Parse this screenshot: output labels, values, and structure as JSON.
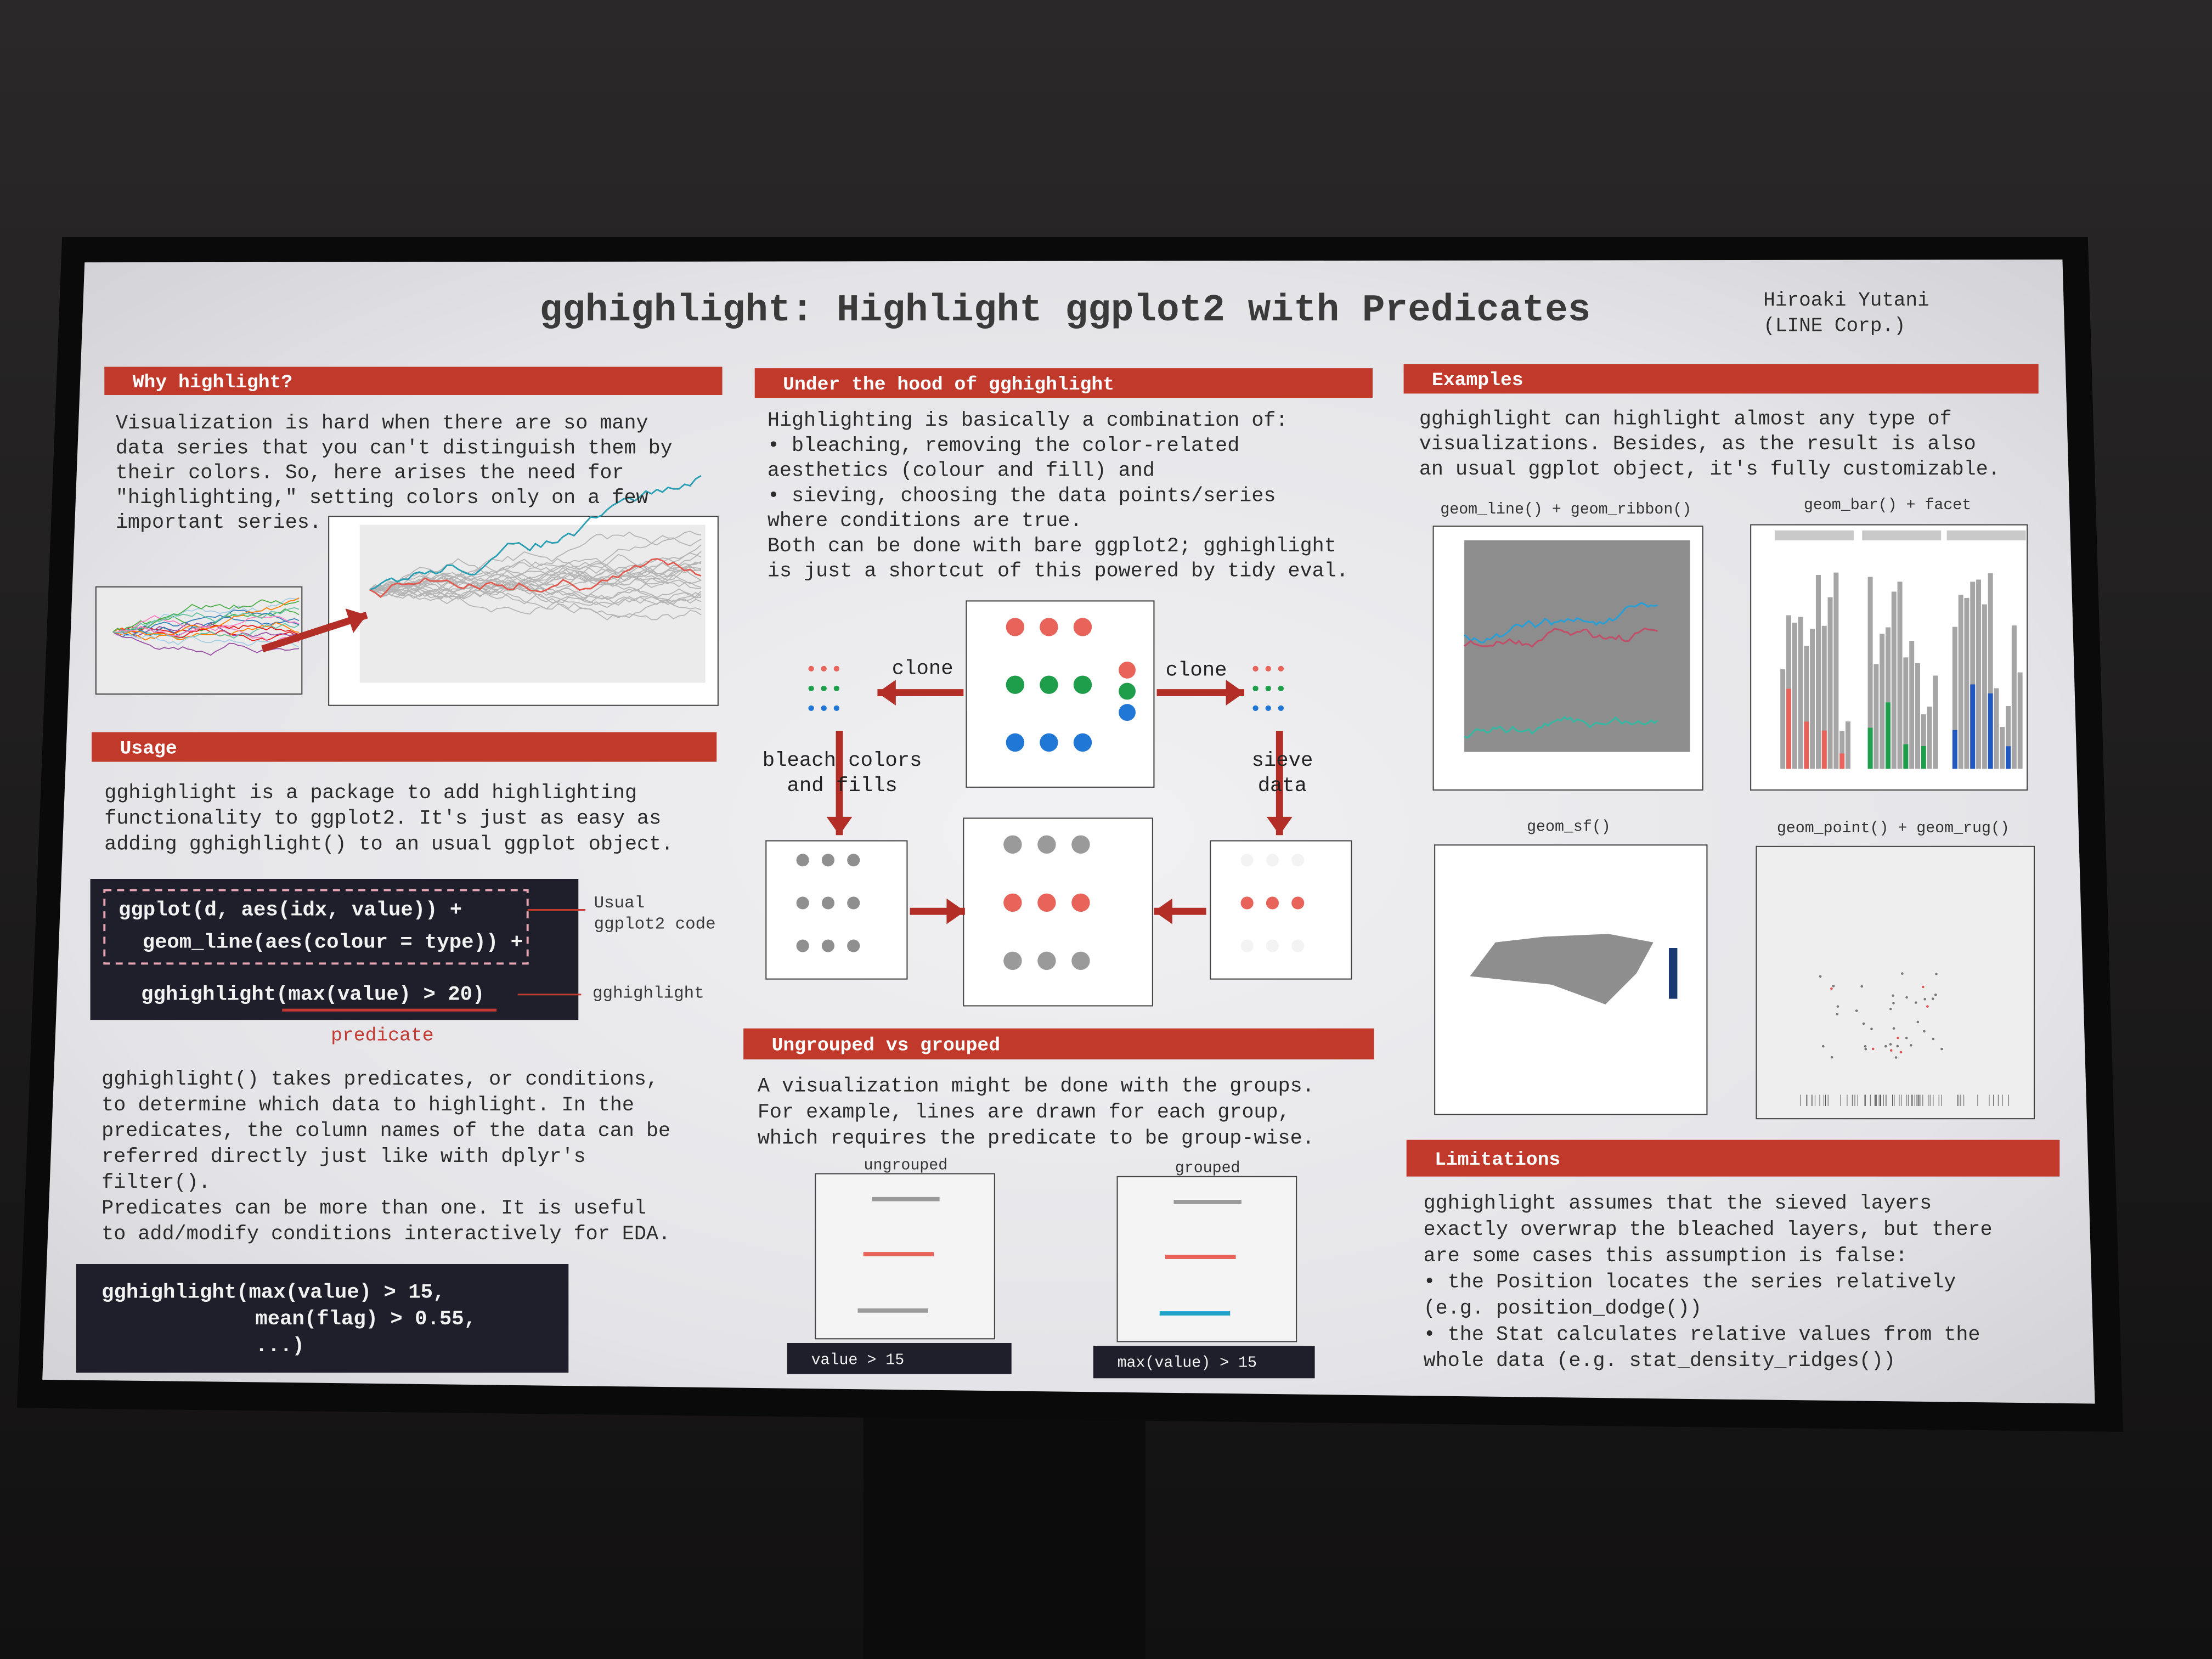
{
  "header": {
    "title": "gghighlight: Highlight ggplot2 with Predicates",
    "author": [
      "Hiroaki Yutani",
      "(LINE Corp.)"
    ]
  },
  "sections": [
    {
      "heading": "Why highlight?",
      "lines": [
        "Visualization is hard when there are so many",
        "data series that you can't distinguish them by",
        "their colors. So, here arises the need for",
        "\"highlighting,\" setting colors only on a few",
        "important series."
      ]
    },
    {
      "heading": "Usage",
      "lines": [
        "gghighlight is a package to add highlighting",
        "functionality to ggplot2. It's just as easy as",
        "adding gghighlight() to an usual ggplot object."
      ]
    },
    {
      "heading": "Under the hood of gghighlight",
      "lines": [
        "Highlighting is basically a combination of:",
        "• bleaching, removing the color-related",
        "  aesthetics (colour and fill) and",
        "• sieving, choosing the data points/series",
        "  where conditions are true.",
        "Both can be done with bare ggplot2; gghighlight",
        "is just a shortcut of this powered by tidy eval."
      ]
    },
    {
      "heading": "Ungrouped vs grouped",
      "lines": [
        "A visualization might be done with the groups.",
        "For example, lines are drawn for each group,",
        "which requires the predicate to be group-wise."
      ]
    },
    {
      "heading": "Examples",
      "lines": [
        "gghighlight can highlight almost any type of",
        "visualizations. Besides, as the result is also",
        "an usual ggplot object, it's fully customizable."
      ]
    },
    {
      "heading": "Limitations",
      "lines": [
        "gghighlight assumes that the sieved layers",
        "exactly overwrap the bleached layers, but there",
        "are some cases this assumption is false:",
        "• the Position locates the series relatively",
        "  (e.g. position_dodge())",
        "• the Stat calculates relative values from the",
        "  whole data (e.g. stat_density_ridges())"
      ]
    }
  ],
  "usage_code": {
    "lines": [
      "ggplot(d, aes(idx, value)) +",
      "geom_line(aes(colour = type)) +",
      "gghighlight(max(value) > 20)"
    ],
    "notes": [
      "Usual",
      "ggplot2 code",
      "gghighlight",
      "predicate"
    ]
  },
  "usage_text": {
    "lines": [
      "gghighlight() takes predicates, or conditions,",
      "to determine which data to highlight. In the",
      "predicates, the column names of the data can be",
      "referred directly just like with dplyr's",
      "filter().",
      "Predicates can be more than one. It is useful",
      "to add/modify conditions interactively for EDA."
    ]
  },
  "multi_code": {
    "lines": [
      "gghighlight(max(value) > 15,",
      "mean(flag) > 0.55,",
      "...)"
    ]
  },
  "diagram": {
    "clone_left": "clone",
    "clone_right": "clone",
    "bleach": [
      "bleach colors",
      "and fills"
    ],
    "sieve": [
      "sieve",
      "data"
    ]
  },
  "grouping": {
    "ungrouped": "ungrouped",
    "grouped": "grouped",
    "ungrouped_code": "value > 15",
    "grouped_code": "max(value) > 15"
  },
  "examples": [
    "geom_line() + geom_ribbon()",
    "geom_bar() + facet",
    "geom_sf()",
    "geom_point() + geom_rug()"
  ]
}
